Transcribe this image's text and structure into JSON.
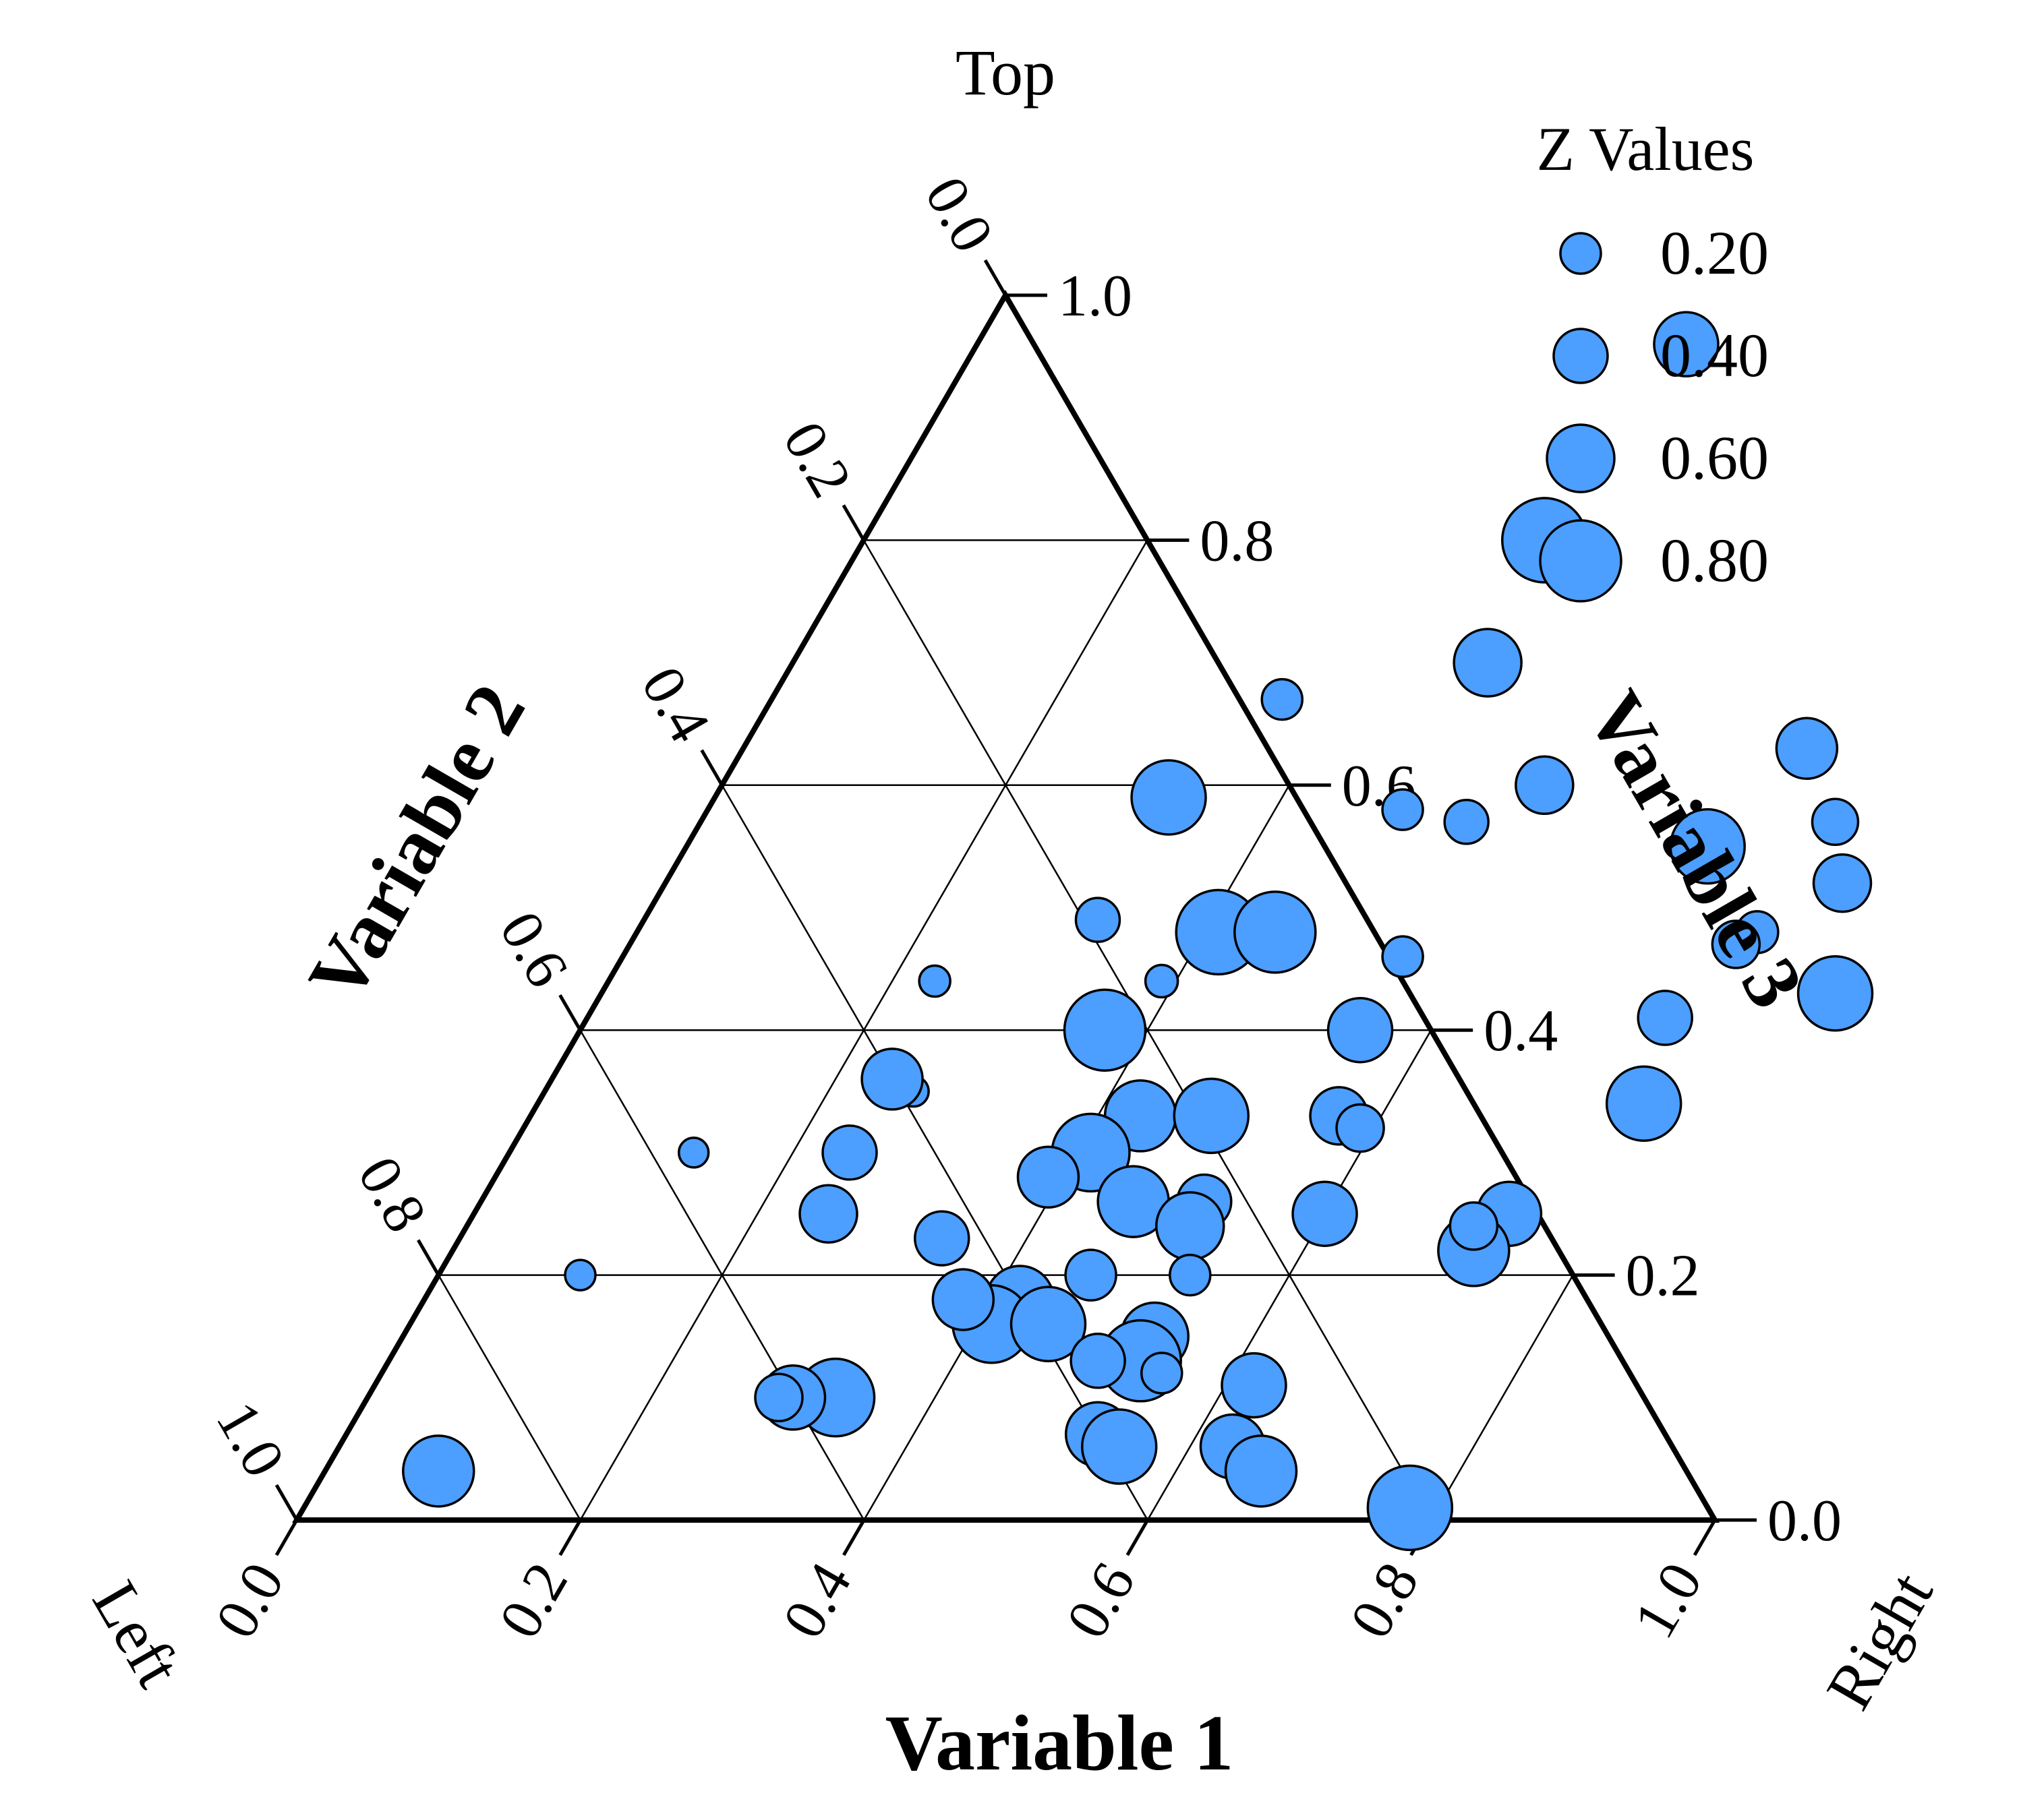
{
  "chart_data": {
    "type": "scatter",
    "subtype": "ternary bubble",
    "corner_labels": {
      "top": "Top",
      "left": "Left",
      "right": "Right"
    },
    "axes": {
      "variable1": {
        "title": "Variable 1",
        "ticks": [
          "0.0",
          "0.2",
          "0.4",
          "0.6",
          "0.8",
          "1.0"
        ]
      },
      "variable2": {
        "title": "Variable 2",
        "ticks": [
          "0.0",
          "0.2",
          "0.4",
          "0.6",
          "0.8",
          "1.0"
        ]
      },
      "variable3": {
        "title": "Variable 3",
        "ticks": [
          "0.0",
          "0.2",
          "0.4",
          "0.6",
          "0.8",
          "1.0"
        ]
      }
    },
    "grid": true,
    "legend": {
      "title": "Z Values",
      "placement": "top-right",
      "entries": [
        {
          "label": "0.20",
          "z": 0.2
        },
        {
          "label": "0.40",
          "z": 0.4
        },
        {
          "label": "0.60",
          "z": 0.6
        },
        {
          "label": "0.80",
          "z": 0.8
        }
      ]
    },
    "marker_color": "#4C9EFF",
    "marker_edge_color": "#000000",
    "point_fields": [
      "variable1",
      "variable3",
      "z"
    ],
    "points": [
      [
        0.5,
        0.96,
        0.55
      ],
      [
        0.48,
        0.8,
        0.85
      ],
      [
        0.49,
        0.7,
        0.6
      ],
      [
        0.36,
        0.67,
        0.2
      ],
      [
        0.75,
        0.63,
        0.5
      ],
      [
        0.58,
        0.6,
        0.45
      ],
      [
        0.49,
        0.58,
        0.2
      ],
      [
        0.72,
        0.55,
        0.7
      ],
      [
        0.54,
        0.57,
        0.25
      ],
      [
        0.8,
        0.57,
        0.28
      ],
      [
        0.83,
        0.52,
        0.45
      ],
      [
        0.32,
        0.59,
        0.7
      ],
      [
        0.79,
        0.48,
        0.22
      ],
      [
        0.32,
        0.49,
        0.25
      ],
      [
        0.41,
        0.48,
        0.85
      ],
      [
        0.45,
        0.48,
        0.8
      ],
      [
        0.78,
        0.47,
        0.3
      ],
      [
        0.23,
        0.44,
        0.06
      ],
      [
        0.39,
        0.44,
        0.08
      ],
      [
        0.55,
        0.46,
        0.2
      ],
      [
        0.76,
        0.41,
        0.4
      ],
      [
        0.87,
        0.43,
        0.7
      ],
      [
        0.37,
        0.4,
        0.8
      ],
      [
        0.55,
        0.4,
        0.55
      ],
      [
        0.26,
        0.35,
        0.05
      ],
      [
        0.43,
        0.33,
        0.65
      ],
      [
        0.24,
        0.36,
        0.5
      ],
      [
        0.48,
        0.33,
        0.7
      ],
      [
        0.78,
        0.34,
        0.7
      ],
      [
        0.57,
        0.33,
        0.45
      ],
      [
        0.59,
        0.32,
        0.3
      ],
      [
        0.13,
        0.3,
        0.04
      ],
      [
        0.24,
        0.3,
        0.4
      ],
      [
        0.41,
        0.3,
        0.75
      ],
      [
        0.39,
        0.28,
        0.5
      ],
      [
        0.46,
        0.26,
        0.65
      ],
      [
        0.6,
        0.25,
        0.55
      ],
      [
        0.51,
        0.26,
        0.4
      ],
      [
        0.73,
        0.25,
        0.55
      ],
      [
        0.72,
        0.22,
        0.65
      ],
      [
        0.25,
        0.25,
        0.45
      ],
      [
        0.71,
        0.24,
        0.3
      ],
      [
        0.51,
        0.24,
        0.6
      ],
      [
        0.34,
        0.23,
        0.4
      ],
      [
        0.1,
        0.2,
        0.05
      ],
      [
        0.46,
        0.2,
        0.35
      ],
      [
        0.53,
        0.2,
        0.2
      ],
      [
        0.42,
        0.18,
        0.6
      ],
      [
        0.41,
        0.16,
        0.75
      ],
      [
        0.45,
        0.16,
        0.7
      ],
      [
        0.53,
        0.15,
        0.6
      ],
      [
        0.38,
        0.18,
        0.5
      ],
      [
        0.53,
        0.13,
        0.8
      ],
      [
        0.5,
        0.13,
        0.4
      ],
      [
        0.55,
        0.12,
        0.2
      ],
      [
        0.33,
        0.1,
        0.75
      ],
      [
        0.3,
        0.1,
        0.55
      ],
      [
        0.29,
        0.1,
        0.3
      ],
      [
        0.62,
        0.11,
        0.55
      ],
      [
        0.53,
        0.07,
        0.55
      ],
      [
        0.55,
        0.06,
        0.7
      ],
      [
        0.63,
        0.06,
        0.55
      ],
      [
        0.08,
        0.04,
        0.65
      ],
      [
        0.66,
        0.04,
        0.65
      ],
      [
        0.78,
        0.01,
        0.85
      ]
    ]
  }
}
